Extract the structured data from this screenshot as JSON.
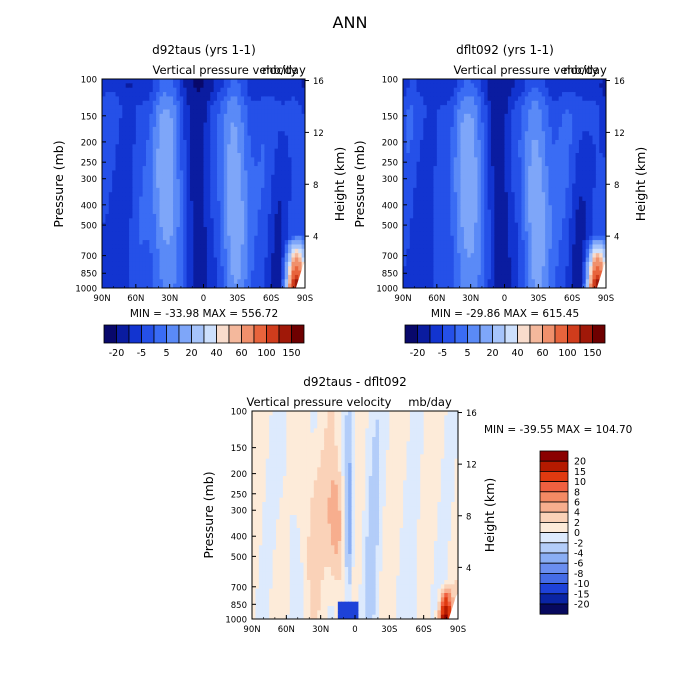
{
  "main_title": "ANN",
  "panels": [
    {
      "id": "p1",
      "title": "d92taus (yrs 1-1)",
      "variable_label": "Vertical pressure velocity",
      "units_label": "mb/day",
      "stats": "MIN = -33.98   MAX = 556.72",
      "colorbar_ticks": [
        "-20",
        "-5",
        "5",
        "20",
        "40",
        "60",
        "100",
        "150"
      ],
      "peak": 1.0
    },
    {
      "id": "p2",
      "title": "dflt092 (yrs 1-1)",
      "variable_label": "Vertical pressure velocity",
      "units_label": "mb/day",
      "stats": "MIN = -29.86   MAX = 615.45",
      "colorbar_ticks": [
        "-20",
        "-5",
        "5",
        "20",
        "40",
        "60",
        "100",
        "150"
      ],
      "peak": 1.0
    },
    {
      "id": "p3",
      "title": "d92taus - dflt092",
      "variable_label": "Vertical pressure velocity",
      "units_label": "mb/day",
      "stats": "MIN = -39.55   MAX = 104.70",
      "colorbar_ticks": [
        "20",
        "15",
        "10",
        "8",
        "6",
        "4",
        "2",
        "0",
        "-2",
        "-4",
        "-6",
        "-8",
        "-10",
        "-15",
        "-20"
      ]
    }
  ],
  "axis_labels": {
    "left": "Pressure (mb)",
    "right": "Height (km)"
  },
  "chart_data": [
    {
      "type": "heatmap",
      "title": "d92taus (yrs 1-1)",
      "subtitle": "Vertical pressure velocity  mb/day",
      "xlabel": "",
      "ylabel": "Pressure (mb)",
      "y2label": "Height (km)",
      "x_ticks": [
        "90N",
        "60N",
        "30N",
        "0",
        "30S",
        "60S",
        "90S"
      ],
      "y_ticks": [
        100,
        150,
        200,
        250,
        300,
        400,
        500,
        700,
        850,
        1000
      ],
      "y2_ticks": [
        4,
        8,
        12,
        16
      ],
      "ylim": [
        1000,
        100
      ],
      "min": -33.98,
      "max": 556.72,
      "colorbar_levels": [
        -20,
        -10,
        -5,
        0,
        5,
        10,
        20,
        30,
        40,
        50,
        60,
        80,
        100,
        120,
        150
      ]
    },
    {
      "type": "heatmap",
      "title": "dflt092 (yrs 1-1)",
      "subtitle": "Vertical pressure velocity  mb/day",
      "xlabel": "",
      "ylabel": "Pressure (mb)",
      "y2label": "Height (km)",
      "x_ticks": [
        "90N",
        "60N",
        "30N",
        "0",
        "30S",
        "60S",
        "90S"
      ],
      "y_ticks": [
        100,
        150,
        200,
        250,
        300,
        400,
        500,
        700,
        850,
        1000
      ],
      "y2_ticks": [
        4,
        8,
        12,
        16
      ],
      "ylim": [
        1000,
        100
      ],
      "min": -29.86,
      "max": 615.45,
      "colorbar_levels": [
        -20,
        -10,
        -5,
        0,
        5,
        10,
        20,
        30,
        40,
        50,
        60,
        80,
        100,
        120,
        150
      ]
    },
    {
      "type": "heatmap",
      "title": "d92taus - dflt092",
      "subtitle": "Vertical pressure velocity  mb/day",
      "xlabel": "",
      "ylabel": "Pressure (mb)",
      "y2label": "Height (km)",
      "x_ticks": [
        "90N",
        "60N",
        "30N",
        "0",
        "30S",
        "60S",
        "90S"
      ],
      "y_ticks": [
        100,
        150,
        200,
        250,
        300,
        400,
        500,
        700,
        850,
        1000
      ],
      "y2_ticks": [
        4,
        8,
        12,
        16
      ],
      "ylim": [
        1000,
        100
      ],
      "min": -39.55,
      "max": 104.7,
      "colorbar_levels": [
        20,
        15,
        10,
        8,
        6,
        4,
        2,
        0,
        -2,
        -4,
        -6,
        -8,
        -10,
        -15,
        -20
      ]
    }
  ],
  "colors": {
    "abs_scale": [
      "#08086b",
      "#0a1ca0",
      "#1234d0",
      "#2550e8",
      "#3a6cf4",
      "#5a8af7",
      "#7ea6f9",
      "#a6c4fb",
      "#cde0fd",
      "#f8dccc",
      "#f4b89c",
      "#f0906c",
      "#e8643c",
      "#d03c1c",
      "#a01808",
      "#6e0000"
    ],
    "diff_scale": [
      "#8a0000",
      "#b51a00",
      "#e03a10",
      "#f06040",
      "#f48a64",
      "#f7ae8e",
      "#fad2b8",
      "#fdebd9",
      "#ddeafd",
      "#b3cdf9",
      "#8aaef4",
      "#6a8ef0",
      "#456ce6",
      "#1e42d8",
      "#0a24a4",
      "#07095e"
    ]
  }
}
